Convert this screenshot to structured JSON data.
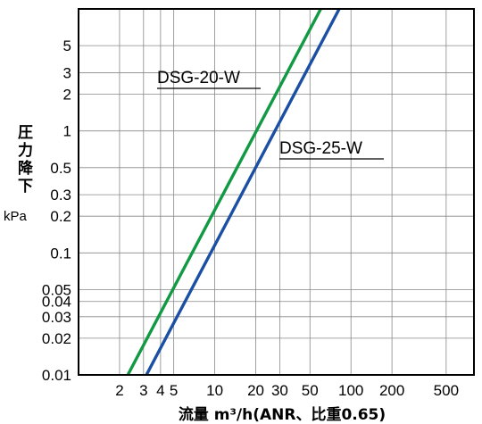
{
  "chart_data": {
    "type": "line",
    "xscale": "log",
    "yscale": "log",
    "xlim": [
      1,
      800
    ],
    "ylim": [
      0.01,
      10
    ],
    "grid": true,
    "xlabel": "流量 m³/h(ANR、比重0.65)",
    "ylabel_chars": [
      "圧",
      "力",
      "降",
      "下"
    ],
    "yunit": "kPa",
    "x_ticks": [
      {
        "value": 2,
        "label": "2"
      },
      {
        "value": 3,
        "label": "3"
      },
      {
        "value": 4,
        "label": "4"
      },
      {
        "value": 5,
        "label": "5"
      },
      {
        "value": 10,
        "label": "10"
      },
      {
        "value": 20,
        "label": "20"
      },
      {
        "value": 30,
        "label": "30"
      },
      {
        "value": 50,
        "label": "50"
      },
      {
        "value": 100,
        "label": "100"
      },
      {
        "value": 200,
        "label": "200"
      },
      {
        "value": 500,
        "label": "500"
      }
    ],
    "y_ticks": [
      {
        "value": 0.01,
        "label": "0.01"
      },
      {
        "value": 0.02,
        "label": "0.02"
      },
      {
        "value": 0.03,
        "label": "0.03"
      },
      {
        "value": 0.04,
        "label": "0.04"
      },
      {
        "value": 0.05,
        "label": "0.05"
      },
      {
        "value": 0.1,
        "label": "0.1"
      },
      {
        "value": 0.2,
        "label": "0.2"
      },
      {
        "value": 0.3,
        "label": "0.3"
      },
      {
        "value": 0.5,
        "label": "0.5"
      },
      {
        "value": 1,
        "label": "1"
      },
      {
        "value": 2,
        "label": "2"
      },
      {
        "value": 3,
        "label": "3"
      },
      {
        "value": 5,
        "label": "5"
      }
    ],
    "series": [
      {
        "name": "DSG-20-W",
        "color": "#119944",
        "x": [
          2.3,
          60
        ],
        "y": [
          0.01,
          10
        ]
      },
      {
        "name": "DSG-25-W",
        "color": "#1a4fa3",
        "x": [
          3.15,
          82
        ],
        "y": [
          0.01,
          10
        ]
      }
    ]
  }
}
